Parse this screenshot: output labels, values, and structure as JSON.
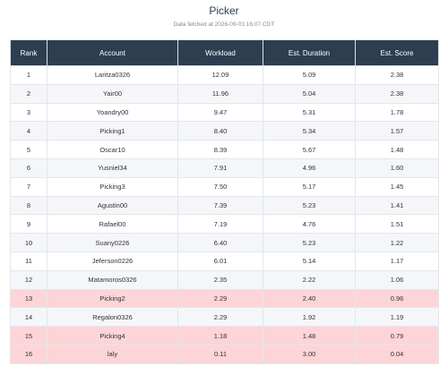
{
  "header": {
    "title": "Picker",
    "subtitle": "Data fetched at 2026-09-01 16:07 CDT"
  },
  "table": {
    "columns": [
      "Rank",
      "Account",
      "Workload",
      "Est. Duration",
      "Est. Score"
    ],
    "rows": [
      [
        "1",
        "Laritza0326",
        "12.09",
        "5.09",
        "2.38"
      ],
      [
        "2",
        "Yair00",
        "11.96",
        "5.04",
        "2.38"
      ],
      [
        "3",
        "Yoandry00",
        "9.47",
        "5.31",
        "1.78"
      ],
      [
        "4",
        "Picking1",
        "8.40",
        "5.34",
        "1.57"
      ],
      [
        "5",
        "Oscar10",
        "8.39",
        "5.67",
        "1.48"
      ],
      [
        "6",
        "Yusniel34",
        "7.91",
        "4.96",
        "1.60"
      ],
      [
        "7",
        "Picking3",
        "7.50",
        "5.17",
        "1.45"
      ],
      [
        "8",
        "Agustin00",
        "7.39",
        "5.23",
        "1.41"
      ],
      [
        "9",
        "Rafael00",
        "7.19",
        "4.76",
        "1.51"
      ],
      [
        "10",
        "Suany0226",
        "6.40",
        "5.23",
        "1.22"
      ],
      [
        "11",
        "Jeferson0226",
        "6.01",
        "5.14",
        "1.17"
      ],
      [
        "12",
        "Matamoros0326",
        "2.35",
        "2.22",
        "1.06"
      ],
      [
        "13",
        "Picking2",
        "2.29",
        "2.40",
        "0.96"
      ],
      [
        "14",
        "Regalon0326",
        "2.29",
        "1.92",
        "1.19"
      ],
      [
        "15",
        "Picking4",
        "1.18",
        "1.48",
        "0.79"
      ],
      [
        "16",
        "laly",
        "0.11",
        "3.00",
        "0.04"
      ]
    ]
  }
}
